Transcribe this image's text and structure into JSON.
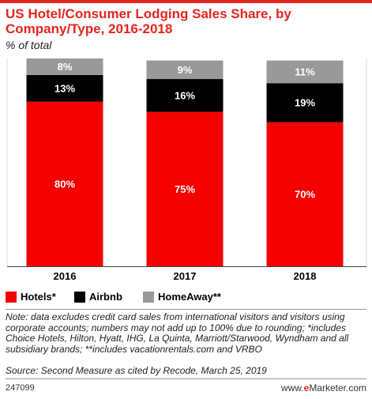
{
  "title": "US Hotel/Consumer Lodging Sales Share, by Company/Type, 2016-2018",
  "subtitle": "% of total",
  "colors": {
    "accent": "#e5251f",
    "hotels": "#f40000",
    "airbnb": "#000000",
    "homeaway": "#999999"
  },
  "chart_data": {
    "type": "bar",
    "stacked": true,
    "title": "US Hotel/Consumer Lodging Sales Share, by Company/Type, 2016-2018",
    "subtitle": "% of total",
    "xlabel": "",
    "ylabel": "",
    "ylim": [
      0,
      101
    ],
    "categories": [
      "2016",
      "2017",
      "2018"
    ],
    "series": [
      {
        "name": "Hotels*",
        "values": [
          80,
          75,
          70
        ],
        "labels": [
          "80%",
          "75%",
          "70%"
        ],
        "color": "#f40000"
      },
      {
        "name": "Airbnb",
        "values": [
          13,
          16,
          19
        ],
        "labels": [
          "13%",
          "16%",
          "19%"
        ],
        "color": "#000000"
      },
      {
        "name": "HomeAway**",
        "values": [
          8,
          9,
          11
        ],
        "labels": [
          "8%",
          "9%",
          "11%"
        ],
        "color": "#999999"
      }
    ],
    "legend_position": "bottom",
    "grid": false
  },
  "note": "Note: data excludes credit card sales from international visitors and visitors using corporate accounts; numbers may not add up to 100% due to rounding; *includes Choice Hotels, Hilton, Hyatt, IHG, La Quinta, Marriott/Starwood, Wyndham and all subsidiary brands; **includes vacationrentals.com and VRBO",
  "source": "Source: Second Measure as cited by Recode, March 25, 2019",
  "chart_id": "247099",
  "brand": {
    "prefix": "www.",
    "highlight": "e",
    "suffix": "Marketer.com"
  }
}
